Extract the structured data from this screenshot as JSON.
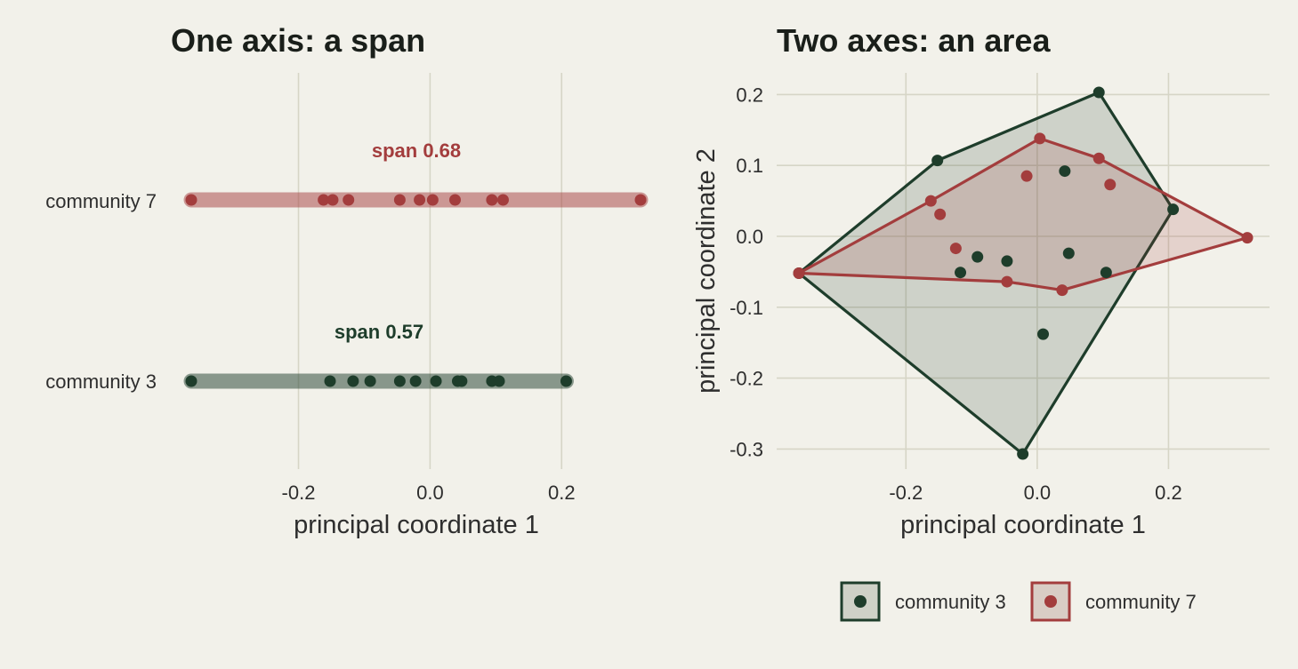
{
  "colors": {
    "community_3": "#1e3d2b",
    "community_7": "#a33d3d",
    "background": "#f2f1ea",
    "grid": "#d6d5c6"
  },
  "chart_data": [
    {
      "type": "scatter",
      "title": "One axis: a span",
      "xlabel": "principal coordinate 1",
      "ylabel": "",
      "xlim": [
        -0.365,
        0.335
      ],
      "xticks": [
        -0.2,
        0.0,
        0.2
      ],
      "xtick_labels": [
        "-0.2",
        "0.0",
        "0.2"
      ],
      "grid": true,
      "categories": [
        "community 7",
        "community 3"
      ],
      "series": [
        {
          "name": "community 7",
          "values": [
            -0.363,
            -0.162,
            -0.148,
            -0.124,
            -0.046,
            -0.016,
            0.004,
            0.038,
            0.094,
            0.111,
            0.32
          ],
          "span": [
            -0.363,
            0.32
          ],
          "annotation": "span 0.68"
        },
        {
          "name": "community 3",
          "values": [
            -0.363,
            -0.152,
            -0.117,
            -0.091,
            -0.046,
            -0.022,
            0.009,
            0.042,
            0.048,
            0.094,
            0.105,
            0.207
          ],
          "span": [
            -0.363,
            0.207
          ],
          "annotation": "span 0.57"
        }
      ]
    },
    {
      "type": "scatter",
      "title": "Two axes: an area",
      "xlabel": "principal coordinate 1",
      "ylabel": "principal coordinate 2",
      "xlim": [
        -0.38,
        0.36
      ],
      "ylim": [
        -0.33,
        0.23
      ],
      "xticks": [
        -0.2,
        0.0,
        0.2
      ],
      "xtick_labels": [
        "-0.2",
        "0.0",
        "0.2"
      ],
      "yticks": [
        0.2,
        0.1,
        0.0,
        -0.1,
        -0.2,
        -0.3
      ],
      "ytick_labels": [
        "0.2",
        "0.1",
        "0.0",
        "-0.1",
        "-0.2",
        "-0.3"
      ],
      "grid": true,
      "legend_position": "bottom",
      "series": [
        {
          "name": "community 3",
          "points": [
            [
              -0.363,
              -0.052
            ],
            [
              -0.152,
              0.107
            ],
            [
              0.094,
              0.203
            ],
            [
              0.207,
              0.038
            ],
            [
              -0.022,
              -0.307
            ],
            [
              0.042,
              0.092
            ],
            [
              -0.117,
              -0.051
            ],
            [
              -0.091,
              -0.029
            ],
            [
              -0.046,
              -0.035
            ],
            [
              0.048,
              -0.024
            ],
            [
              0.105,
              -0.051
            ],
            [
              0.009,
              -0.138
            ]
          ],
          "hull": [
            [
              -0.363,
              -0.052
            ],
            [
              -0.152,
              0.107
            ],
            [
              0.094,
              0.203
            ],
            [
              0.207,
              0.038
            ],
            [
              -0.022,
              -0.307
            ]
          ]
        },
        {
          "name": "community 7",
          "points": [
            [
              -0.363,
              -0.052
            ],
            [
              -0.162,
              0.05
            ],
            [
              0.004,
              0.138
            ],
            [
              0.094,
              0.11
            ],
            [
              0.32,
              -0.002
            ],
            [
              0.038,
              -0.076
            ],
            [
              -0.046,
              -0.064
            ],
            [
              -0.148,
              0.031
            ],
            [
              -0.124,
              -0.017
            ],
            [
              -0.016,
              0.085
            ],
            [
              0.111,
              0.073
            ]
          ],
          "hull": [
            [
              -0.363,
              -0.052
            ],
            [
              -0.162,
              0.05
            ],
            [
              0.004,
              0.138
            ],
            [
              0.094,
              0.11
            ],
            [
              0.32,
              -0.002
            ],
            [
              0.038,
              -0.076
            ],
            [
              -0.046,
              -0.064
            ]
          ]
        }
      ]
    }
  ],
  "legend": {
    "items": [
      {
        "label": "community 3",
        "color": "#1e3d2b"
      },
      {
        "label": "community 7",
        "color": "#a33d3d"
      }
    ]
  }
}
